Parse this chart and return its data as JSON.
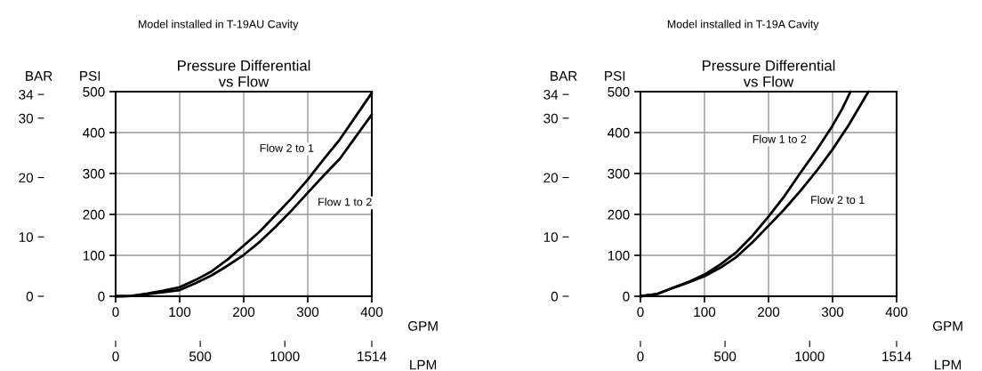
{
  "chart_data": [
    {
      "type": "line",
      "subtitle": "Model installed in T-19AU Cavity",
      "title": "Pressure Differential\nvs Flow",
      "xlabel": "GPM",
      "ylabel": "PSI",
      "y2label": "BAR",
      "x2label": "LPM",
      "x": [
        0,
        25,
        50,
        75,
        100,
        125,
        150,
        175,
        200,
        225,
        250,
        275,
        300,
        325,
        350,
        375,
        400
      ],
      "series": [
        {
          "name": "Flow 2 to 1",
          "color": "#000000",
          "values": [
            0,
            1,
            7,
            14,
            22,
            40,
            61,
            90,
            124,
            158,
            199,
            240,
            285,
            335,
            383,
            440,
            497
          ]
        },
        {
          "name": "Flow 1 to 2",
          "color": "#000000",
          "values": [
            0,
            1,
            5,
            10,
            15,
            32,
            51,
            75,
            101,
            133,
            170,
            210,
            253,
            295,
            336,
            390,
            444
          ]
        }
      ],
      "xlim": [
        0,
        400
      ],
      "xticks": [
        0,
        100,
        200,
        300,
        400
      ],
      "ylim": [
        0,
        500
      ],
      "yticks": [
        0,
        100,
        200,
        300,
        400,
        500
      ],
      "y2lim": [
        0,
        34.47
      ],
      "y2ticks": [
        0,
        10,
        20,
        30,
        34
      ],
      "x2lim": [
        0,
        1514
      ],
      "x2ticks": [
        0,
        500,
        1000,
        1514
      ],
      "grid": true,
      "line_style": "solid"
    },
    {
      "type": "line",
      "subtitle": "Model installed in T-19A Cavity",
      "title": "Pressure Differential\nvs Flow",
      "xlabel": "GPM",
      "ylabel": "PSI",
      "y2label": "BAR",
      "x2label": "LPM",
      "series": [
        {
          "name": "Flow 1 to 2",
          "color": "#000000",
          "x": [
            0,
            25,
            50,
            75,
            100,
            125,
            150,
            175,
            200,
            225,
            250,
            275,
            300,
            315,
            328
          ],
          "values": [
            0,
            5,
            20,
            35,
            53,
            78,
            108,
            148,
            195,
            245,
            302,
            357,
            417,
            458,
            500
          ]
        },
        {
          "name": "Flow 2 to 1",
          "color": "#000000",
          "x": [
            0,
            25,
            50,
            75,
            100,
            125,
            150,
            175,
            200,
            225,
            250,
            275,
            300,
            325,
            356
          ],
          "values": [
            0,
            5,
            20,
            34,
            49,
            70,
            96,
            132,
            172,
            213,
            258,
            306,
            359,
            418,
            500
          ]
        }
      ],
      "xlim": [
        0,
        400
      ],
      "xticks": [
        0,
        100,
        200,
        300,
        400
      ],
      "ylim": [
        0,
        500
      ],
      "yticks": [
        0,
        100,
        200,
        300,
        400,
        500
      ],
      "y2lim": [
        0,
        34.47
      ],
      "y2ticks": [
        0,
        10,
        20,
        30,
        34
      ],
      "x2lim": [
        0,
        1514
      ],
      "x2ticks": [
        0,
        500,
        1000,
        1514
      ],
      "grid": true,
      "line_style": "solid"
    }
  ]
}
